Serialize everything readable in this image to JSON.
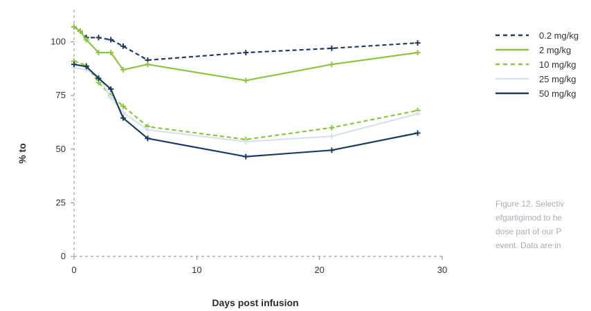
{
  "chart_data": {
    "type": "line",
    "xlabel": "Days post infusion",
    "ylabel": "% to",
    "xlim": [
      0,
      30
    ],
    "ylim": [
      0,
      115
    ],
    "xticks": [
      0,
      10,
      20,
      30
    ],
    "yticks": [
      0,
      25,
      50,
      75,
      100
    ],
    "grid": false,
    "legend_position": "top-right",
    "series": [
      {
        "name": "0.2 mg/kg",
        "color": "#1f3a5f",
        "dash": "dashed",
        "x": [
          0,
          0.5,
          1,
          2,
          3,
          4,
          6,
          14,
          21,
          28
        ],
        "y": [
          107,
          105,
          102,
          102,
          101,
          98,
          91.5,
          95,
          97,
          99.5
        ]
      },
      {
        "name": "2 mg/kg",
        "color": "#8cc63e",
        "dash": "solid",
        "x": [
          0,
          0.5,
          1,
          2,
          3,
          4,
          6,
          14,
          21,
          28
        ],
        "y": [
          107,
          105,
          101,
          95,
          95,
          87,
          89.5,
          82,
          89.5,
          95
        ]
      },
      {
        "name": "10 mg/kg",
        "color": "#8cc63e",
        "dash": "dashed",
        "x": [
          0,
          1,
          2,
          3,
          4,
          6,
          14,
          21,
          28
        ],
        "y": [
          91,
          89,
          81,
          75,
          70,
          60.5,
          54.5,
          60,
          68
        ]
      },
      {
        "name": "25 mg/kg",
        "color": "#d6e2ee",
        "dash": "solid",
        "x": [
          0,
          1,
          2,
          3,
          4,
          6,
          14,
          21,
          28
        ],
        "y": [
          88,
          87,
          84,
          74,
          67,
          59,
          53.5,
          56,
          66.5
        ]
      },
      {
        "name": "50 mg/kg",
        "color": "#1b3b5c",
        "dash": "solid",
        "x": [
          0,
          1,
          2,
          3,
          4,
          6,
          14,
          21,
          28
        ],
        "y": [
          89.5,
          88.5,
          83,
          78,
          64.5,
          55,
          46.5,
          49.5,
          57.5
        ]
      }
    ]
  },
  "caption": {
    "lines": [
      "Figure 12. Selectiv",
      "efgartigimod to he",
      "dose part of our P",
      "event. Data are in"
    ]
  }
}
